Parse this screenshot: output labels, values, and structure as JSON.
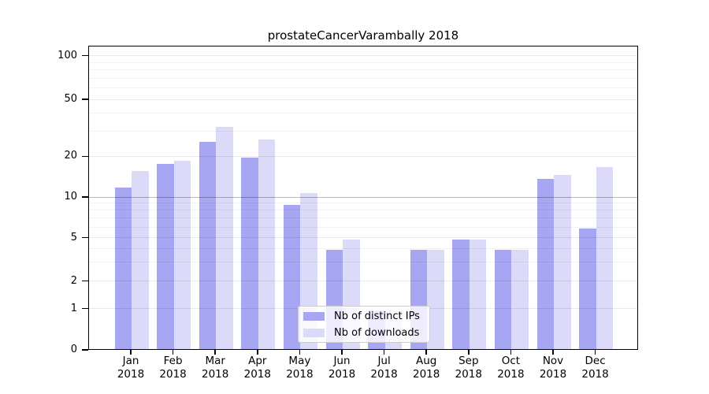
{
  "chart_data": {
    "type": "bar",
    "title": "prostateCancerVarambally 2018",
    "year": "2018",
    "categories": [
      "Jan",
      "Feb",
      "Mar",
      "Apr",
      "May",
      "Jun",
      "Jul",
      "Aug",
      "Sep",
      "Oct",
      "Nov",
      "Dec"
    ],
    "series": [
      {
        "name": "Nb of distinct IPs",
        "color": "#a6a6f2",
        "values": [
          12,
          18,
          26,
          20,
          9,
          4,
          1,
          4,
          5,
          4,
          14,
          6
        ]
      },
      {
        "name": "Nb of downloads",
        "color": "#dbdbf9",
        "values": [
          16,
          19,
          33,
          27,
          11,
          5,
          1,
          4,
          5,
          4,
          15,
          17
        ]
      }
    ],
    "yticks": [
      0,
      1,
      2,
      5,
      10,
      20,
      50,
      100
    ],
    "minor_yticks": [
      3,
      4,
      6,
      7,
      8,
      9,
      30,
      40,
      60,
      70,
      80,
      90
    ],
    "emphasized_gridline": 10,
    "scale": "log1p",
    "ylim": [
      0,
      107
    ],
    "xlabel": "",
    "ylabel": "",
    "grid": true,
    "legend": {
      "position": "lower center",
      "labels": [
        "Nb of distinct IPs",
        "Nb of downloads"
      ]
    }
  }
}
